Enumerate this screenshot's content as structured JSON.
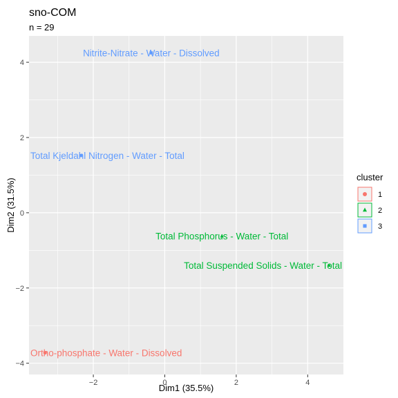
{
  "chart_data": {
    "type": "scatter",
    "title": "sno-COM",
    "subtitle": "n = 29",
    "xlabel": "Dim1 (35.5%)",
    "ylabel": "Dim2 (31.5%)",
    "xlim": [
      -3.8,
      5.0
    ],
    "ylim": [
      -4.3,
      4.7
    ],
    "x_ticks": [
      -2,
      0,
      2,
      4
    ],
    "y_ticks": [
      -4,
      -2,
      0,
      2,
      4
    ],
    "grid": true,
    "legend": {
      "title": "cluster",
      "position": "right",
      "entries": [
        {
          "key": "1",
          "label": "1",
          "color": "#F8766D",
          "shape": "circle"
        },
        {
          "key": "2",
          "label": "2",
          "color": "#00BA38",
          "shape": "triangle"
        },
        {
          "key": "3",
          "label": "3",
          "color": "#619CFF",
          "shape": "square"
        }
      ]
    },
    "points": [
      {
        "label": "Nitrite-Nitrate - Water - Dissolved",
        "x": -0.38,
        "y": 4.25,
        "cluster": "3"
      },
      {
        "label": "Total Kjeldahl Nitrogen - Water - Total",
        "x": -2.35,
        "y": 1.52,
        "cluster": "3"
      },
      {
        "label": "Total Phosphorus - Water - Total",
        "x": 1.6,
        "y": -0.62,
        "cluster": "2"
      },
      {
        "label": "Total Suspended Solids - Water - Total",
        "x": 4.6,
        "y": -1.4,
        "cluster": "2"
      },
      {
        "label": "Ortho-phosphate - Water - Dissolved",
        "x": -3.35,
        "y": -3.72,
        "cluster": "1"
      }
    ]
  }
}
